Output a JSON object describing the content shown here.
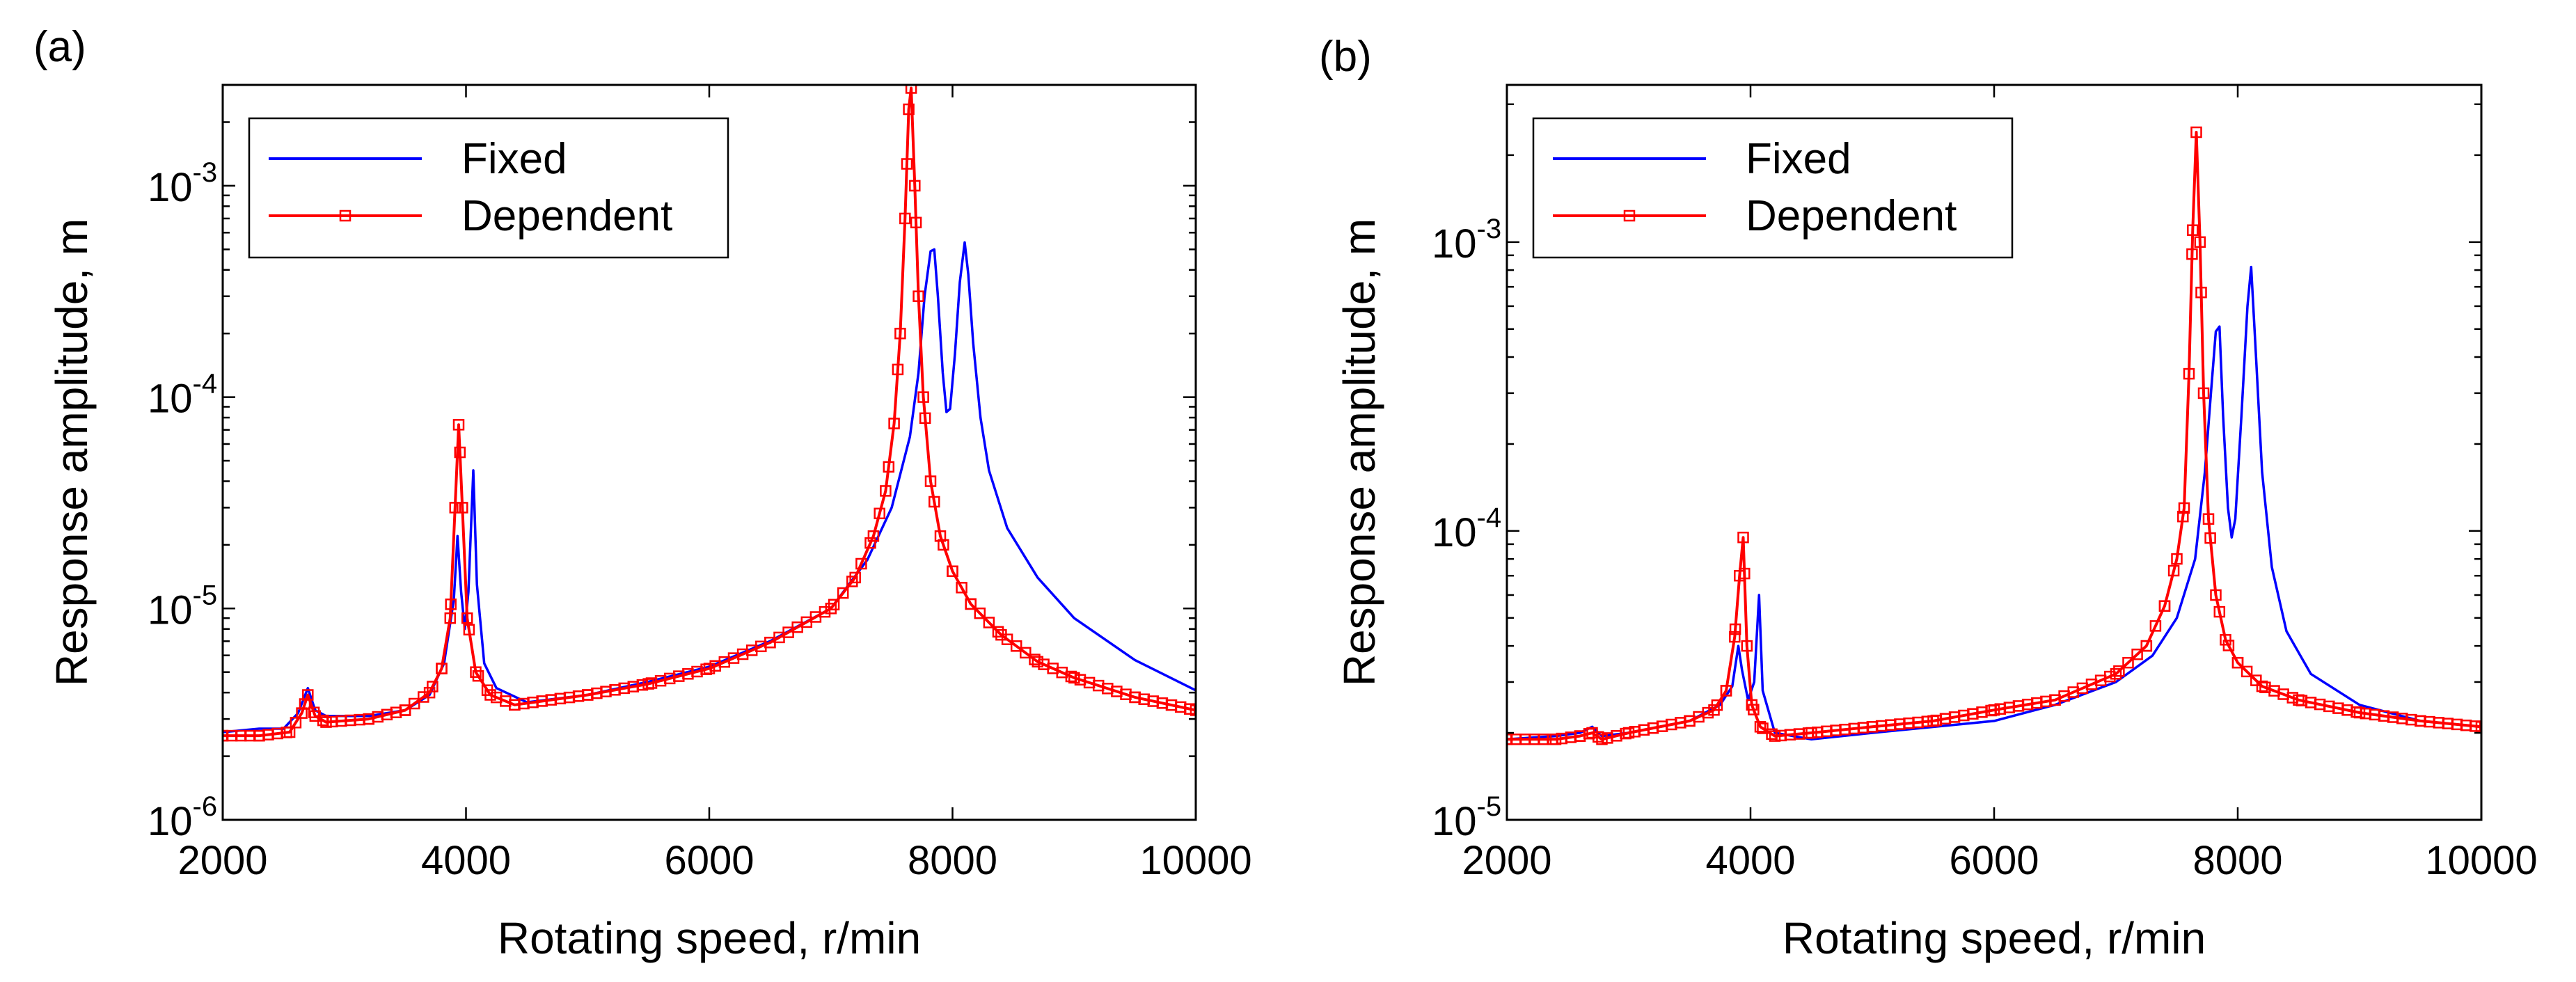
{
  "chart_data": [
    {
      "panel": "(a)",
      "type": "line",
      "xlabel": "Rotating speed, r/min",
      "ylabel": "Response amplitude, m",
      "y_scale": "log",
      "xlim": [
        2000,
        10000
      ],
      "ylim": [
        1e-06,
        0.003
      ],
      "x_ticks": [
        2000,
        4000,
        6000,
        8000,
        10000
      ],
      "x_tick_labels": [
        "2000",
        "4000",
        "6000",
        "8000",
        "10000"
      ],
      "y_ticks": [
        {
          "value": 1e-06,
          "base": "10",
          "exponent": "-6"
        },
        {
          "value": 1e-05,
          "base": "10",
          "exponent": "-5"
        },
        {
          "value": 0.0001,
          "base": "10",
          "exponent": "-4"
        },
        {
          "value": 0.001,
          "base": "10",
          "exponent": "-3"
        }
      ],
      "legend_position": "top-left",
      "series": [
        {
          "name": "Fixed",
          "color": "#0000ff",
          "marker": "none",
          "points": [
            [
              2000,
              2.6e-06
            ],
            [
              2300,
              2.7e-06
            ],
            [
              2500,
              2.7e-06
            ],
            [
              2620,
              3.2e-06
            ],
            [
              2700,
              4.2e-06
            ],
            [
              2760,
              3.3e-06
            ],
            [
              2850,
              3.1e-06
            ],
            [
              3200,
              3.1e-06
            ],
            [
              3500,
              3.3e-06
            ],
            [
              3700,
              3.9e-06
            ],
            [
              3820,
              5.5e-06
            ],
            [
              3900,
              1.1e-05
            ],
            [
              3930,
              2.2e-05
            ],
            [
              3960,
              1.2e-05
            ],
            [
              3990,
              8e-06
            ],
            [
              4020,
              1.2e-05
            ],
            [
              4060,
              4.5e-05
            ],
            [
              4090,
              1.3e-05
            ],
            [
              4150,
              5.5e-06
            ],
            [
              4250,
              4.2e-06
            ],
            [
              4500,
              3.6e-06
            ],
            [
              5000,
              3.9e-06
            ],
            [
              5500,
              4.5e-06
            ],
            [
              6000,
              5.3e-06
            ],
            [
              6500,
              7e-06
            ],
            [
              7000,
              1e-05
            ],
            [
              7300,
              1.7e-05
            ],
            [
              7500,
              3e-05
            ],
            [
              7650,
              6.5e-05
            ],
            [
              7720,
              0.00013
            ],
            [
              7770,
              0.0003
            ],
            [
              7820,
              0.00049
            ],
            [
              7850,
              0.0005
            ],
            [
              7880,
              0.0003
            ],
            [
              7920,
              0.00013
            ],
            [
              7950,
              8.5e-05
            ],
            [
              7980,
              8.8e-05
            ],
            [
              8020,
              0.00016
            ],
            [
              8060,
              0.00035
            ],
            [
              8100,
              0.00054
            ],
            [
              8130,
              0.00038
            ],
            [
              8170,
              0.00018
            ],
            [
              8230,
              8e-05
            ],
            [
              8300,
              4.5e-05
            ],
            [
              8450,
              2.4e-05
            ],
            [
              8700,
              1.4e-05
            ],
            [
              9000,
              9e-06
            ],
            [
              9500,
              5.7e-06
            ],
            [
              10000,
              4.1e-06
            ]
          ]
        },
        {
          "name": "Dependent",
          "color": "#ff0000",
          "marker": "square",
          "points": [
            [
              2000,
              2.5e-06
            ],
            [
              2300,
              2.5e-06
            ],
            [
              2550,
              2.6e-06
            ],
            [
              2650,
              3.2e-06
            ],
            [
              2700,
              3.9e-06
            ],
            [
              2760,
              3.1e-06
            ],
            [
              2850,
              2.9e-06
            ],
            [
              3200,
              3e-06
            ],
            [
              3500,
              3.3e-06
            ],
            [
              3700,
              4e-06
            ],
            [
              3800,
              5.2e-06
            ],
            [
              3870,
              9e-06
            ],
            [
              3910,
              3e-05
            ],
            [
              3940,
              7.4e-05
            ],
            [
              3970,
              3e-05
            ],
            [
              4010,
              9e-06
            ],
            [
              4080,
              5e-06
            ],
            [
              4200,
              3.9e-06
            ],
            [
              4400,
              3.5e-06
            ],
            [
              5000,
              3.9e-06
            ],
            [
              5500,
              4.4e-06
            ],
            [
              6000,
              5.2e-06
            ],
            [
              6500,
              6.9e-06
            ],
            [
              7000,
              1e-05
            ],
            [
              7200,
              1.4e-05
            ],
            [
              7350,
              2.2e-05
            ],
            [
              7450,
              3.6e-05
            ],
            [
              7520,
              7.5e-05
            ],
            [
              7570,
              0.0002
            ],
            [
              7610,
              0.0007
            ],
            [
              7640,
              0.0023
            ],
            [
              7660,
              0.0029
            ],
            [
              7690,
              0.001
            ],
            [
              7720,
              0.0003
            ],
            [
              7760,
              0.0001
            ],
            [
              7820,
              4e-05
            ],
            [
              7900,
              2.2e-05
            ],
            [
              8000,
              1.5e-05
            ],
            [
              8150,
              1.05e-05
            ],
            [
              8400,
              7.5e-06
            ],
            [
              8700,
              5.6e-06
            ],
            [
              9000,
              4.7e-06
            ],
            [
              9500,
              3.8e-06
            ],
            [
              10000,
              3.3e-06
            ]
          ]
        }
      ]
    },
    {
      "panel": "(b)",
      "type": "line",
      "xlabel": "Rotating speed, r/min",
      "ylabel": "Response amplitude, m",
      "y_scale": "log",
      "xlim": [
        2000,
        10000
      ],
      "ylim": [
        1e-05,
        0.0035
      ],
      "x_ticks": [
        2000,
        4000,
        6000,
        8000,
        10000
      ],
      "x_tick_labels": [
        "2000",
        "4000",
        "6000",
        "8000",
        "10000"
      ],
      "y_ticks": [
        {
          "value": 1e-05,
          "base": "10",
          "exponent": "-5"
        },
        {
          "value": 0.0001,
          "base": "10",
          "exponent": "-4"
        },
        {
          "value": 0.001,
          "base": "10",
          "exponent": "-3"
        }
      ],
      "legend_position": "top-left",
      "series": [
        {
          "name": "Fixed",
          "color": "#0000ff",
          "marker": "none",
          "points": [
            [
              2000,
              1.9e-05
            ],
            [
              2400,
              1.95e-05
            ],
            [
              2600,
              2e-05
            ],
            [
              2700,
              2.1e-05
            ],
            [
              2780,
              1.95e-05
            ],
            [
              3000,
              2e-05
            ],
            [
              3500,
              2.2e-05
            ],
            [
              3750,
              2.5e-05
            ],
            [
              3850,
              2.9e-05
            ],
            [
              3900,
              4e-05
            ],
            [
              3930,
              3.3e-05
            ],
            [
              3980,
              2.6e-05
            ],
            [
              4030,
              3e-05
            ],
            [
              4070,
              6e-05
            ],
            [
              4100,
              2.8e-05
            ],
            [
              4200,
              2e-05
            ],
            [
              4500,
              1.9e-05
            ],
            [
              5000,
              2e-05
            ],
            [
              6000,
              2.2e-05
            ],
            [
              6500,
              2.5e-05
            ],
            [
              7000,
              3e-05
            ],
            [
              7300,
              3.7e-05
            ],
            [
              7500,
              5e-05
            ],
            [
              7650,
              8e-05
            ],
            [
              7730,
              0.00016
            ],
            [
              7780,
              0.0003
            ],
            [
              7820,
              0.00049
            ],
            [
              7850,
              0.00051
            ],
            [
              7880,
              0.00025
            ],
            [
              7920,
              0.00012
            ],
            [
              7950,
              9.5e-05
            ],
            [
              7980,
              0.00011
            ],
            [
              8030,
              0.00025
            ],
            [
              8080,
              0.0006
            ],
            [
              8110,
              0.00082
            ],
            [
              8150,
              0.0004
            ],
            [
              8200,
              0.00016
            ],
            [
              8280,
              7.5e-05
            ],
            [
              8400,
              4.5e-05
            ],
            [
              8600,
              3.2e-05
            ],
            [
              9000,
              2.5e-05
            ],
            [
              9500,
              2.2e-05
            ],
            [
              10000,
              2.1e-05
            ]
          ]
        },
        {
          "name": "Dependent",
          "color": "#ff0000",
          "marker": "square",
          "points": [
            [
              2000,
              1.9e-05
            ],
            [
              2400,
              1.9e-05
            ],
            [
              2600,
              1.95e-05
            ],
            [
              2700,
              2e-05
            ],
            [
              2780,
              1.9e-05
            ],
            [
              3000,
              2e-05
            ],
            [
              3500,
              2.2e-05
            ],
            [
              3700,
              2.4e-05
            ],
            [
              3800,
              2.8e-05
            ],
            [
              3870,
              4.3e-05
            ],
            [
              3910,
              7e-05
            ],
            [
              3940,
              9.5e-05
            ],
            [
              3970,
              4e-05
            ],
            [
              4010,
              2.5e-05
            ],
            [
              4080,
              2.1e-05
            ],
            [
              4200,
              1.95e-05
            ],
            [
              4500,
              2e-05
            ],
            [
              5000,
              2.1e-05
            ],
            [
              5500,
              2.2e-05
            ],
            [
              6000,
              2.4e-05
            ],
            [
              6500,
              2.6e-05
            ],
            [
              7000,
              3.2e-05
            ],
            [
              7250,
              4e-05
            ],
            [
              7400,
              5.5e-05
            ],
            [
              7500,
              8e-05
            ],
            [
              7560,
              0.00012
            ],
            [
              7600,
              0.00035
            ],
            [
              7630,
              0.0011
            ],
            [
              7660,
              0.0024
            ],
            [
              7690,
              0.001
            ],
            [
              7720,
              0.0003
            ],
            [
              7760,
              0.00011
            ],
            [
              7820,
              6e-05
            ],
            [
              7900,
              4.2e-05
            ],
            [
              8000,
              3.5e-05
            ],
            [
              8200,
              2.9e-05
            ],
            [
              8500,
              2.6e-05
            ],
            [
              9000,
              2.35e-05
            ],
            [
              9500,
              2.2e-05
            ],
            [
              10000,
              2.1e-05
            ]
          ]
        }
      ]
    }
  ]
}
